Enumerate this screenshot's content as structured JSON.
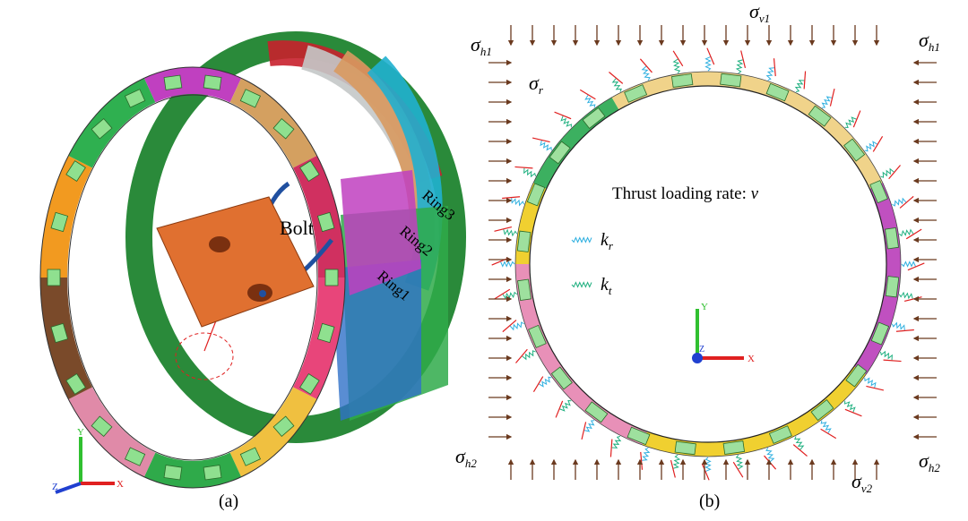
{
  "panel_a": {
    "caption": "(a)",
    "bolt_label": "Bolt",
    "ring_labels": [
      "Ring1",
      "Ring2",
      "Ring3"
    ],
    "axes": {
      "y": "Y",
      "x": "X",
      "z": "Z"
    }
  },
  "panel_b": {
    "caption": "(b)",
    "stresses": [
      {
        "symbol": "σ",
        "sub": "h1"
      },
      {
        "symbol": "σ",
        "sub": "v1"
      },
      {
        "symbol": "σ",
        "sub": "h1"
      },
      {
        "symbol": "σ",
        "sub": "r"
      },
      {
        "symbol": "σ",
        "sub": "h2"
      },
      {
        "symbol": "σ",
        "sub": "v2"
      },
      {
        "symbol": "σ",
        "sub": "h2"
      }
    ],
    "loading": {
      "text": "Thrust loading rate: ",
      "var": "v"
    },
    "springs": [
      {
        "symbol": "k",
        "sub": "r"
      },
      {
        "symbol": "k",
        "sub": "t"
      }
    ],
    "axes": {
      "y": "Y",
      "x": "X",
      "z": "Z"
    }
  }
}
